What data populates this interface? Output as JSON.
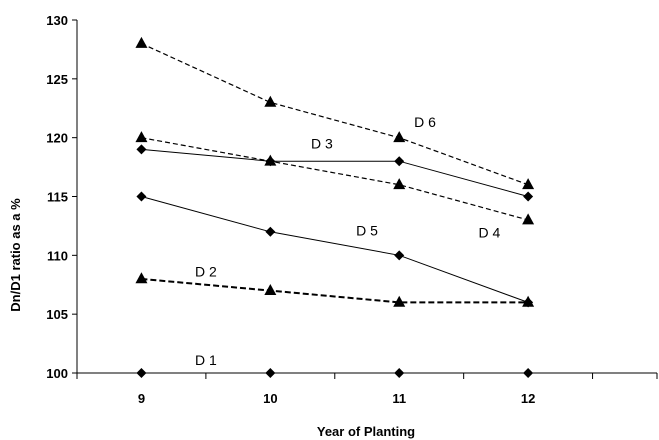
{
  "chart_data": {
    "type": "line",
    "title": "",
    "xlabel": "Year of Planting",
    "ylabel": "Dn/D1 ratio as a %",
    "x": [
      9,
      10,
      11,
      12
    ],
    "xlim": [
      8.5,
      13
    ],
    "ylim": [
      100,
      130
    ],
    "yticks": [
      100,
      105,
      110,
      115,
      120,
      125,
      130
    ],
    "grid": false,
    "legend": "none",
    "series": [
      {
        "name": "D 1",
        "marker": "diamond",
        "line": "solid",
        "values": [
          100,
          100,
          100,
          100
        ]
      },
      {
        "name": "D 2",
        "marker": "triangle",
        "line": "dashed-bold",
        "values": [
          108,
          107,
          106,
          106
        ]
      },
      {
        "name": "D 3",
        "marker": "diamond",
        "line": "solid",
        "values": [
          119,
          118,
          118,
          115
        ]
      },
      {
        "name": "D 4",
        "marker": "triangle",
        "line": "dashed",
        "values": [
          120,
          118,
          116,
          113
        ]
      },
      {
        "name": "D 5",
        "marker": "diamond",
        "line": "solid",
        "values": [
          115,
          112,
          110,
          106
        ]
      },
      {
        "name": "D 6",
        "marker": "triangle",
        "line": "dashed",
        "values": [
          128,
          123,
          120,
          116
        ]
      }
    ],
    "series_labels": [
      {
        "text": "D 1",
        "x": 9.5,
        "y": 100.7
      },
      {
        "text": "D 2",
        "x": 9.5,
        "y": 108.2
      },
      {
        "text": "D 3",
        "x": 10.4,
        "y": 119.1
      },
      {
        "text": "D 4",
        "x": 11.7,
        "y": 111.5
      },
      {
        "text": "D 5",
        "x": 10.75,
        "y": 111.7
      },
      {
        "text": "D 6",
        "x": 11.2,
        "y": 120.9
      }
    ]
  }
}
